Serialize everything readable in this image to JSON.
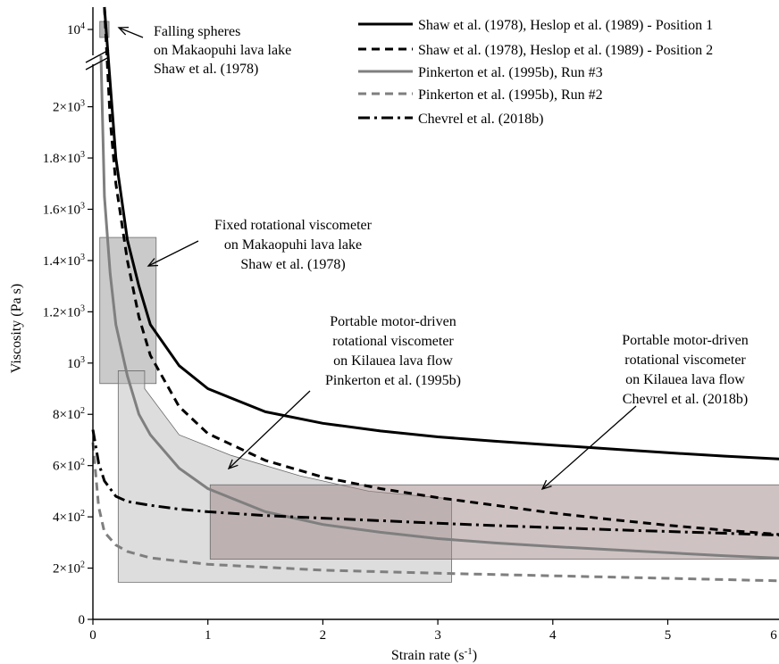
{
  "chart_data": {
    "type": "line",
    "title": "",
    "xlabel": "Strain rate (s-1)",
    "xlabel_main": "Strain rate (s",
    "xlabel_sup": "-1",
    "xlabel_close": ")",
    "ylabel": "Viscosity (Pa s)",
    "xlim": [
      0,
      6
    ],
    "ylim": [
      0,
      2150
    ],
    "y_axis_break": true,
    "y_break_top_value": "10^4",
    "x_ticks": [
      {
        "v": 0,
        "label": "0"
      },
      {
        "v": 1,
        "label": "1"
      },
      {
        "v": 2,
        "label": "2"
      },
      {
        "v": 3,
        "label": "3"
      },
      {
        "v": 4,
        "label": "4"
      },
      {
        "v": 5,
        "label": "5"
      },
      {
        "v": 6,
        "label": "6"
      }
    ],
    "y_ticks": [
      {
        "v": 0,
        "base": "0",
        "exp": ""
      },
      {
        "v": 200,
        "base": "2×10",
        "exp": "2"
      },
      {
        "v": 400,
        "base": "4×10",
        "exp": "2"
      },
      {
        "v": 600,
        "base": "6×10",
        "exp": "2"
      },
      {
        "v": 800,
        "base": "8×10",
        "exp": "2"
      },
      {
        "v": 1000,
        "base": "10",
        "exp": "3"
      },
      {
        "v": 1200,
        "base": "1.2×10",
        "exp": "3"
      },
      {
        "v": 1400,
        "base": "1.4×10",
        "exp": "3"
      },
      {
        "v": 1600,
        "base": "1.6×10",
        "exp": "3"
      },
      {
        "v": 1800,
        "base": "1.8×10",
        "exp": "3"
      },
      {
        "v": 2000,
        "base": "2×10",
        "exp": "3"
      }
    ],
    "y_break_tick": {
      "base": "10",
      "exp": "4"
    },
    "series": [
      {
        "name": "Shaw et al. (1978), Heslop et al. (1989) - Position 1",
        "color": "#000000",
        "dash": "solid",
        "x": [
          0.1,
          0.2,
          0.3,
          0.4,
          0.5,
          0.75,
          1,
          1.5,
          2,
          2.5,
          3,
          3.5,
          4,
          4.5,
          5,
          5.5,
          6
        ],
        "y": [
          2500,
          1800,
          1480,
          1300,
          1150,
          990,
          900,
          810,
          765,
          735,
          712,
          695,
          680,
          665,
          650,
          637,
          625
        ]
      },
      {
        "name": "Shaw et al. (1978), Heslop et al. (1989) - Position 2",
        "color": "#000000",
        "dash": "dashed",
        "x": [
          0.1,
          0.15,
          0.2,
          0.3,
          0.4,
          0.5,
          0.75,
          1,
          1.5,
          2,
          2.5,
          3,
          3.5,
          4,
          4.5,
          5,
          5.5,
          6
        ],
        "y": [
          2400,
          1950,
          1700,
          1400,
          1180,
          1030,
          830,
          725,
          620,
          555,
          510,
          475,
          445,
          415,
          390,
          367,
          348,
          330
        ]
      },
      {
        "name": "Pinkerton et al. (1995b), Run #3",
        "color": "#7f7f7f",
        "dash": "solid",
        "x": [
          0.07,
          0.1,
          0.15,
          0.2,
          0.3,
          0.4,
          0.5,
          0.75,
          1,
          1.5,
          2,
          2.5,
          3,
          3.5,
          4,
          4.5,
          5,
          5.5,
          6
        ],
        "y": [
          2200,
          1650,
          1350,
          1150,
          950,
          800,
          720,
          590,
          510,
          420,
          370,
          340,
          315,
          298,
          284,
          272,
          260,
          248,
          238
        ]
      },
      {
        "name": "Pinkerton et al. (1995b), Run #2",
        "color": "#7f7f7f",
        "dash": "dashed",
        "x": [
          0,
          0.05,
          0.1,
          0.2,
          0.3,
          0.5,
          1,
          2,
          3,
          4,
          5,
          6
        ],
        "y": [
          690,
          440,
          340,
          290,
          265,
          240,
          215,
          192,
          180,
          170,
          160,
          150
        ]
      },
      {
        "name": "Chevrel et al. (2018b)",
        "color": "#000000",
        "dash": "dashdot",
        "x": [
          0,
          0.05,
          0.1,
          0.2,
          0.3,
          0.5,
          0.75,
          1,
          1.5,
          2,
          2.5,
          3,
          3.5,
          4,
          4.5,
          5,
          5.5,
          6
        ],
        "y": [
          740,
          610,
          540,
          480,
          460,
          445,
          430,
          420,
          405,
          395,
          385,
          375,
          366,
          358,
          350,
          343,
          336,
          328
        ]
      }
    ],
    "boxes": [
      {
        "label": "Falling spheres",
        "color": "#8c8c8c",
        "opacity": 0.65,
        "x0": 0.06,
        "x1": 0.14,
        "y_top": "break",
        "y_bot": "break"
      },
      {
        "label": "Fixed rotational viscometer",
        "color": "#b3b3b3",
        "opacity": 0.7,
        "x0": 0.06,
        "x1": 0.55,
        "y0": 920,
        "y1": 1490
      },
      {
        "label": "Pinkerton box",
        "color": "#bcbcbc",
        "opacity": 0.5,
        "x0": 0.22,
        "x1": 3.12,
        "y0": 145,
        "y1": 970
      },
      {
        "label": "Chevrel box",
        "color": "#a08585",
        "opacity": 0.5,
        "x0": 1.02,
        "x1": 6.0,
        "y0": 235,
        "y1": 525
      }
    ],
    "annotations": [
      {
        "lines": [
          "Falling spheres",
          "on Makaopuhi lava lake",
          "Shaw et al. (1978)"
        ]
      },
      {
        "lines": [
          "Fixed rotational viscometer",
          "on Makaopuhi lava lake",
          "Shaw et al. (1978)"
        ]
      },
      {
        "lines": [
          "Portable motor-driven",
          "rotational viscometer",
          "on Kilauea lava flow",
          "Pinkerton et al. (1995b)"
        ]
      },
      {
        "lines": [
          "Portable motor-driven",
          "rotational viscometer",
          "on Kilauea lava flow",
          "Chevrel et al. (2018b)"
        ]
      }
    ],
    "legend_position": "top-right",
    "grid": false
  }
}
